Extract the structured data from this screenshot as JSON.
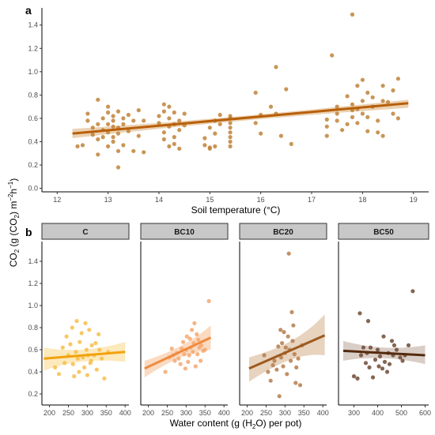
{
  "figure": {
    "y_label_shared": "CO₂ (g (CO₂) m⁻²h⁻¹)",
    "y_label_parts": [
      "CO",
      "2",
      " (g (CO",
      "2",
      ") m",
      "−2",
      "h",
      "−1",
      ")"
    ]
  },
  "chart_data": [
    {
      "type": "scatter",
      "panel": "a",
      "xlabel": "Soil temperature (°C)",
      "xlim": [
        11.7,
        19.3
      ],
      "ylim": [
        -0.03,
        1.52
      ],
      "x_ticks": [
        12,
        13,
        14,
        15,
        16,
        17,
        18,
        19
      ],
      "y_ticks": [
        0.0,
        0.2,
        0.4,
        0.6,
        0.8,
        1.0,
        1.2,
        1.4
      ],
      "grid": false,
      "colors": {
        "point": "#c08238",
        "line": "#b85f0a",
        "ribbon": "#e7c9a4"
      },
      "regression": {
        "x": [
          12.3,
          18.9
        ],
        "y": [
          0.47,
          0.73
        ],
        "ci_upper": [
          0.51,
          0.76
        ],
        "ci_lower": [
          0.43,
          0.69
        ]
      },
      "points": [
        [
          12.4,
          0.36
        ],
        [
          12.5,
          0.37
        ],
        [
          12.6,
          0.64
        ],
        [
          12.6,
          0.58
        ],
        [
          12.7,
          0.52
        ],
        [
          12.7,
          0.46
        ],
        [
          12.8,
          0.76
        ],
        [
          12.8,
          0.55
        ],
        [
          12.8,
          0.42
        ],
        [
          12.8,
          0.29
        ],
        [
          12.9,
          0.6
        ],
        [
          12.9,
          0.5
        ],
        [
          12.9,
          0.44
        ],
        [
          13.0,
          0.7
        ],
        [
          13.0,
          0.65
        ],
        [
          13.0,
          0.55
        ],
        [
          13.0,
          0.48
        ],
        [
          13.0,
          0.36
        ],
        [
          13.1,
          0.62
        ],
        [
          13.1,
          0.58
        ],
        [
          13.1,
          0.53
        ],
        [
          13.1,
          0.44
        ],
        [
          13.1,
          0.4
        ],
        [
          13.2,
          0.66
        ],
        [
          13.2,
          0.52
        ],
        [
          13.2,
          0.47
        ],
        [
          13.2,
          0.32
        ],
        [
          13.2,
          0.18
        ],
        [
          13.3,
          0.6
        ],
        [
          13.3,
          0.55
        ],
        [
          13.3,
          0.37
        ],
        [
          13.4,
          0.63
        ],
        [
          13.4,
          0.49
        ],
        [
          13.5,
          0.58
        ],
        [
          13.5,
          0.32
        ],
        [
          13.6,
          0.67
        ],
        [
          13.6,
          0.45
        ],
        [
          13.7,
          0.58
        ],
        [
          13.7,
          0.31
        ],
        [
          14.0,
          0.62
        ],
        [
          14.0,
          0.56
        ],
        [
          14.1,
          0.72
        ],
        [
          14.1,
          0.66
        ],
        [
          14.1,
          0.48
        ],
        [
          14.1,
          0.42
        ],
        [
          14.2,
          0.7
        ],
        [
          14.2,
          0.6
        ],
        [
          14.2,
          0.53
        ],
        [
          14.2,
          0.36
        ],
        [
          14.3,
          0.65
        ],
        [
          14.3,
          0.55
        ],
        [
          14.3,
          0.44
        ],
        [
          14.3,
          0.38
        ],
        [
          14.4,
          0.58
        ],
        [
          14.4,
          0.5
        ],
        [
          14.4,
          0.34
        ],
        [
          14.5,
          0.64
        ],
        [
          14.5,
          0.54
        ],
        [
          14.9,
          0.43
        ],
        [
          14.9,
          0.37
        ],
        [
          15.0,
          0.52
        ],
        [
          15.0,
          0.35
        ],
        [
          15.0,
          0.34
        ],
        [
          15.1,
          0.58
        ],
        [
          15.1,
          0.47
        ],
        [
          15.1,
          0.36
        ],
        [
          15.2,
          0.63
        ],
        [
          15.2,
          0.55
        ],
        [
          15.4,
          0.6
        ],
        [
          15.4,
          0.56
        ],
        [
          15.4,
          0.52
        ],
        [
          15.4,
          0.48
        ],
        [
          15.4,
          0.44
        ],
        [
          15.4,
          0.4
        ],
        [
          15.4,
          0.36
        ],
        [
          15.4,
          0.62
        ],
        [
          15.9,
          0.82
        ],
        [
          15.9,
          0.56
        ],
        [
          16.0,
          0.63
        ],
        [
          16.0,
          0.47
        ],
        [
          16.2,
          0.7
        ],
        [
          16.3,
          1.04
        ],
        [
          16.3,
          0.64
        ],
        [
          16.4,
          0.45
        ],
        [
          16.5,
          0.85
        ],
        [
          16.6,
          0.38
        ],
        [
          17.3,
          0.59
        ],
        [
          17.3,
          0.53
        ],
        [
          17.3,
          0.45
        ],
        [
          17.4,
          1.14
        ],
        [
          17.5,
          0.7
        ],
        [
          17.5,
          0.64
        ],
        [
          17.5,
          0.58
        ],
        [
          17.6,
          0.5
        ],
        [
          17.7,
          0.79
        ],
        [
          17.7,
          0.55
        ],
        [
          17.8,
          1.49
        ],
        [
          17.8,
          0.67
        ],
        [
          17.8,
          0.61
        ],
        [
          17.8,
          0.72
        ],
        [
          17.9,
          0.88
        ],
        [
          17.9,
          0.68
        ],
        [
          17.9,
          0.56
        ],
        [
          18.0,
          0.93
        ],
        [
          18.0,
          0.75
        ],
        [
          18.0,
          0.64
        ],
        [
          18.1,
          0.82
        ],
        [
          18.1,
          0.61
        ],
        [
          18.1,
          0.49
        ],
        [
          18.2,
          0.78
        ],
        [
          18.2,
          0.7
        ],
        [
          18.3,
          0.58
        ],
        [
          18.3,
          0.48
        ],
        [
          18.4,
          0.88
        ],
        [
          18.4,
          0.75
        ],
        [
          18.4,
          0.45
        ],
        [
          18.5,
          0.74
        ],
        [
          18.6,
          0.84
        ],
        [
          18.6,
          0.64
        ],
        [
          18.7,
          0.94
        ],
        [
          18.7,
          0.6
        ]
      ]
    },
    {
      "type": "scatter",
      "panel": "b",
      "xlabel": "Water content (g (H₂O) per pot)",
      "xlabel_parts": [
        "Water content (g (H",
        "2",
        "O) per pot)"
      ],
      "ylim": [
        0.1,
        1.55
      ],
      "y_ticks": [
        0.2,
        0.4,
        0.6,
        0.8,
        1.0,
        1.2,
        1.4
      ],
      "grid": false,
      "facets": [
        {
          "name": "C",
          "xlim": [
            180,
            410
          ],
          "x_ticks": [
            200,
            250,
            300,
            350,
            400
          ],
          "colors": {
            "point": "#f7be4a",
            "line": "#f2a20c",
            "ribbon": "#fbe5b0"
          },
          "regression": {
            "x": [
              185,
              400
            ],
            "y": [
              0.52,
              0.58
            ],
            "ci_upper": [
              0.62,
              0.67
            ],
            "ci_lower": [
              0.41,
              0.49
            ]
          },
          "points": [
            [
              215,
              0.44
            ],
            [
              225,
              0.38
            ],
            [
              235,
              0.62
            ],
            [
              240,
              0.48
            ],
            [
              245,
              0.72
            ],
            [
              250,
              0.55
            ],
            [
              255,
              0.65
            ],
            [
              260,
              0.8
            ],
            [
              262,
              0.47
            ],
            [
              265,
              0.36
            ],
            [
              270,
              0.58
            ],
            [
              272,
              0.86
            ],
            [
              275,
              0.52
            ],
            [
              278,
              0.4
            ],
            [
              280,
              0.67
            ],
            [
              285,
              0.75
            ],
            [
              288,
              0.53
            ],
            [
              292,
              0.44
            ],
            [
              295,
              0.84
            ],
            [
              298,
              0.6
            ],
            [
              300,
              0.37
            ],
            [
              302,
              0.55
            ],
            [
              305,
              0.78
            ],
            [
              308,
              0.48
            ],
            [
              310,
              0.5
            ],
            [
              312,
              0.64
            ],
            [
              318,
              0.55
            ],
            [
              322,
              0.66
            ],
            [
              325,
              0.42
            ],
            [
              330,
              0.74
            ],
            [
              332,
              0.6
            ],
            [
              338,
              0.52
            ],
            [
              345,
              0.34
            ],
            [
              355,
              0.58
            ]
          ]
        },
        {
          "name": "BC10",
          "xlim": [
            180,
            410
          ],
          "x_ticks": [
            200,
            250,
            300,
            350,
            400
          ],
          "colors": {
            "point": "#f3a870",
            "line": "#ef8a3e",
            "ribbon": "#f9d4b6"
          },
          "regression": {
            "x": [
              190,
              365
            ],
            "y": [
              0.43,
              0.71
            ],
            "ci_upper": [
              0.5,
              0.82
            ],
            "ci_lower": [
              0.35,
              0.6
            ]
          },
          "points": [
            [
              245,
              0.4
            ],
            [
              255,
              0.53
            ],
            [
              262,
              0.61
            ],
            [
              265,
              0.55
            ],
            [
              270,
              0.5
            ],
            [
              275,
              0.57
            ],
            [
              280,
              0.52
            ],
            [
              285,
              0.47
            ],
            [
              288,
              0.61
            ],
            [
              292,
              0.67
            ],
            [
              295,
              0.56
            ],
            [
              298,
              0.43
            ],
            [
              300,
              0.6
            ],
            [
              302,
              0.72
            ],
            [
              305,
              0.49
            ],
            [
              308,
              0.55
            ],
            [
              310,
              0.7
            ],
            [
              312,
              0.62
            ],
            [
              315,
              0.78
            ],
            [
              318,
              0.58
            ],
            [
              320,
              0.66
            ],
            [
              322,
              0.84
            ],
            [
              325,
              0.45
            ],
            [
              328,
              0.74
            ],
            [
              330,
              0.56
            ],
            [
              332,
              0.69
            ],
            [
              335,
              0.62
            ],
            [
              338,
              0.5
            ],
            [
              340,
              0.64
            ],
            [
              345,
              0.59
            ],
            [
              350,
              0.6
            ],
            [
              360,
              1.04
            ]
          ]
        },
        {
          "name": "BC20",
          "xlim": [
            180,
            410
          ],
          "x_ticks": [
            200,
            250,
            300,
            350,
            400
          ],
          "colors": {
            "point": "#b57d4c",
            "line": "#9e5a1f",
            "ribbon": "#e3cbb3"
          },
          "regression": {
            "x": [
              205,
              405
            ],
            "y": [
              0.43,
              0.73
            ],
            "ci_upper": [
              0.53,
              0.92
            ],
            "ci_lower": [
              0.31,
              0.55
            ]
          },
          "points": [
            [
              245,
              0.55
            ],
            [
              255,
              0.4
            ],
            [
              262,
              0.32
            ],
            [
              268,
              0.46
            ],
            [
              272,
              0.5
            ],
            [
              278,
              0.42
            ],
            [
              282,
              0.63
            ],
            [
              285,
              0.18
            ],
            [
              288,
              0.78
            ],
            [
              290,
              0.53
            ],
            [
              292,
              0.66
            ],
            [
              295,
              0.45
            ],
            [
              297,
              0.76
            ],
            [
              300,
              0.57
            ],
            [
              302,
              0.62
            ],
            [
              305,
              0.38
            ],
            [
              308,
              0.72
            ],
            [
              310,
              1.47
            ],
            [
              312,
              0.6
            ],
            [
              315,
              0.5
            ],
            [
              318,
              0.94
            ],
            [
              320,
              0.68
            ],
            [
              322,
              0.82
            ],
            [
              325,
              0.56
            ],
            [
              328,
              0.3
            ],
            [
              330,
              0.44
            ],
            [
              335,
              0.52
            ],
            [
              340,
              0.28
            ],
            [
              345,
              0.64
            ]
          ]
        },
        {
          "name": "BC50",
          "xlim": [
            235,
            615
          ],
          "x_ticks": [
            300,
            400,
            500,
            600
          ],
          "colors": {
            "point": "#6e4b35",
            "line": "#552a0e",
            "ribbon": "#d2c5bd"
          },
          "regression": {
            "x": [
              255,
              600
            ],
            "y": [
              0.59,
              0.55
            ],
            "ci_upper": [
              0.68,
              0.64
            ],
            "ci_lower": [
              0.5,
              0.47
            ]
          },
          "points": [
            [
              300,
              0.36
            ],
            [
              315,
              0.34
            ],
            [
              325,
              0.93
            ],
            [
              330,
              0.55
            ],
            [
              340,
              0.62
            ],
            [
              350,
              0.48
            ],
            [
              355,
              0.57
            ],
            [
              360,
              0.86
            ],
            [
              365,
              0.44
            ],
            [
              370,
              0.62
            ],
            [
              380,
              0.35
            ],
            [
              390,
              0.51
            ],
            [
              400,
              0.6
            ],
            [
              405,
              0.45
            ],
            [
              410,
              0.54
            ],
            [
              420,
              0.43
            ],
            [
              425,
              0.72
            ],
            [
              430,
              0.49
            ],
            [
              440,
              0.4
            ],
            [
              445,
              0.57
            ],
            [
              450,
              0.47
            ],
            [
              460,
              0.68
            ],
            [
              465,
              0.55
            ],
            [
              470,
              0.64
            ],
            [
              480,
              0.6
            ],
            [
              495,
              0.53
            ],
            [
              505,
              0.5
            ],
            [
              515,
              0.55
            ],
            [
              530,
              0.64
            ],
            [
              548,
              1.13
            ]
          ]
        }
      ]
    }
  ]
}
